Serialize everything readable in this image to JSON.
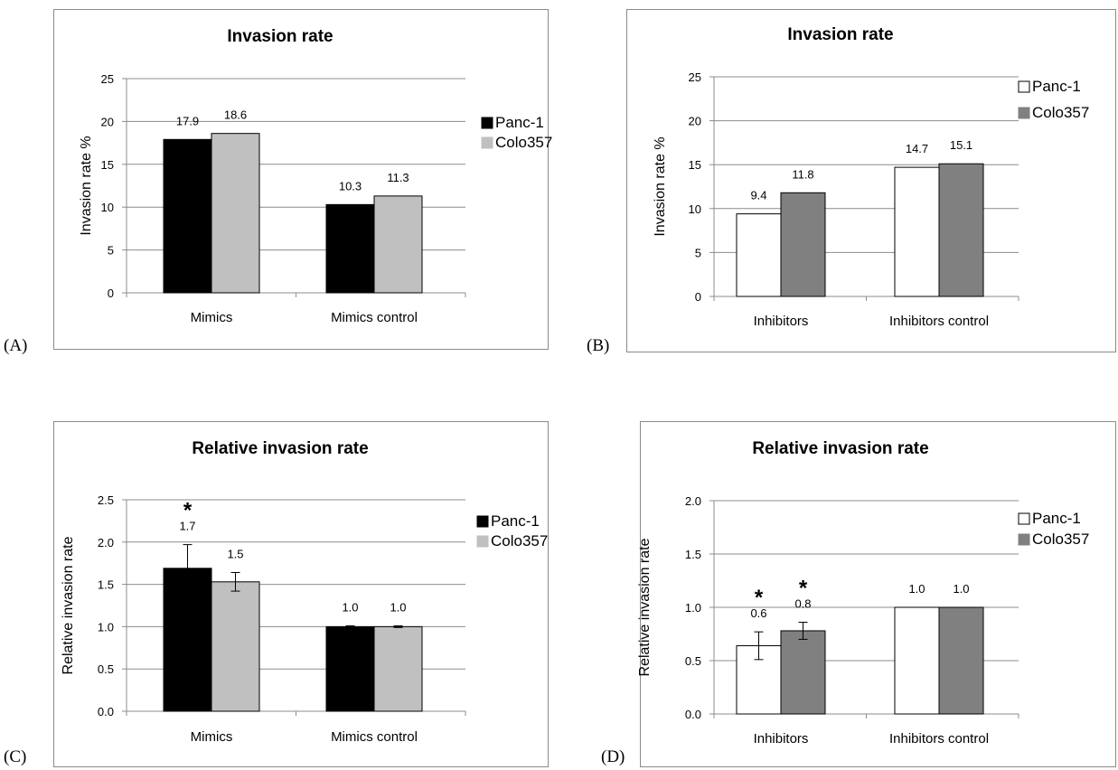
{
  "charts": [
    {
      "panel_label": "(A)",
      "chart_data": {
        "type": "bar",
        "title": "Invasion rate",
        "ylabel": "Invasion rate %",
        "xlabel": "",
        "categories": [
          "Mimics",
          "Mimics control"
        ],
        "ylim": [
          0,
          25
        ],
        "yticks": [
          "0",
          "5",
          "10",
          "15",
          "20",
          "25"
        ],
        "grid": true,
        "legend_position": "right",
        "series": [
          {
            "name": "Panc-1",
            "color": "#000000",
            "values": [
              17.9,
              10.3
            ],
            "labels": [
              "17.9",
              "10.3"
            ]
          },
          {
            "name": "Colo357",
            "color": "#c0c0c0",
            "values": [
              18.6,
              11.3
            ],
            "labels": [
              "18.6",
              "11.3"
            ]
          }
        ]
      }
    },
    {
      "panel_label": "(B)",
      "chart_data": {
        "type": "bar",
        "title": "Invasion rate",
        "ylabel": "Invasion rate %",
        "xlabel": "",
        "categories": [
          "Inhibitors",
          "Inhibitors control"
        ],
        "ylim": [
          0,
          25
        ],
        "yticks": [
          "0",
          "5",
          "10",
          "15",
          "20",
          "25"
        ],
        "grid": true,
        "legend_position": "right",
        "series": [
          {
            "name": "Panc-1",
            "color": "#ffffff",
            "values": [
              9.4,
              14.7
            ],
            "labels": [
              "9.4",
              "14.7"
            ]
          },
          {
            "name": "Colo357",
            "color": "#808080",
            "values": [
              11.8,
              15.1
            ],
            "labels": [
              "11.8",
              "15.1"
            ]
          }
        ]
      }
    },
    {
      "panel_label": "(C)",
      "chart_data": {
        "type": "bar",
        "title": "Relative invasion rate",
        "ylabel": "Relative invasion rate",
        "xlabel": "",
        "categories": [
          "Mimics",
          "Mimics control"
        ],
        "ylim": [
          0,
          2.5
        ],
        "yticks": [
          "0.0",
          "0.5",
          "1.0",
          "1.5",
          "2.0",
          "2.5"
        ],
        "grid": true,
        "legend_position": "right",
        "series": [
          {
            "name": "Panc-1",
            "color": "#000000",
            "values": [
              1.69,
              1.0
            ],
            "labels": [
              "1.7",
              "1.0"
            ],
            "errors": [
              0.28,
              0.01
            ],
            "stars": [
              "*",
              ""
            ]
          },
          {
            "name": "Colo357",
            "color": "#c0c0c0",
            "values": [
              1.53,
              1.0
            ],
            "labels": [
              "1.5",
              "1.0"
            ],
            "errors": [
              0.11,
              0.01
            ],
            "stars": [
              "",
              ""
            ]
          }
        ]
      }
    },
    {
      "panel_label": "(D)",
      "chart_data": {
        "type": "bar",
        "title": "Relative invasion rate",
        "ylabel": "Relative invasion rate",
        "xlabel": "",
        "categories": [
          "Inhibitors",
          "Inhibitors control"
        ],
        "ylim": [
          0,
          2.0
        ],
        "yticks": [
          "0.0",
          "0.5",
          "1.0",
          "1.5",
          "2.0"
        ],
        "grid": true,
        "legend_position": "right",
        "series": [
          {
            "name": "Panc-1",
            "color": "#ffffff",
            "values": [
              0.64,
              1.0
            ],
            "labels": [
              "0.6",
              "1.0"
            ],
            "errors": [
              0.13,
              0.0
            ],
            "stars": [
              "*",
              ""
            ]
          },
          {
            "name": "Colo357",
            "color": "#808080",
            "values": [
              0.78,
              1.0
            ],
            "labels": [
              "0.8",
              "1.0"
            ],
            "errors": [
              0.08,
              0.0
            ],
            "stars": [
              "*",
              ""
            ]
          }
        ]
      }
    }
  ]
}
